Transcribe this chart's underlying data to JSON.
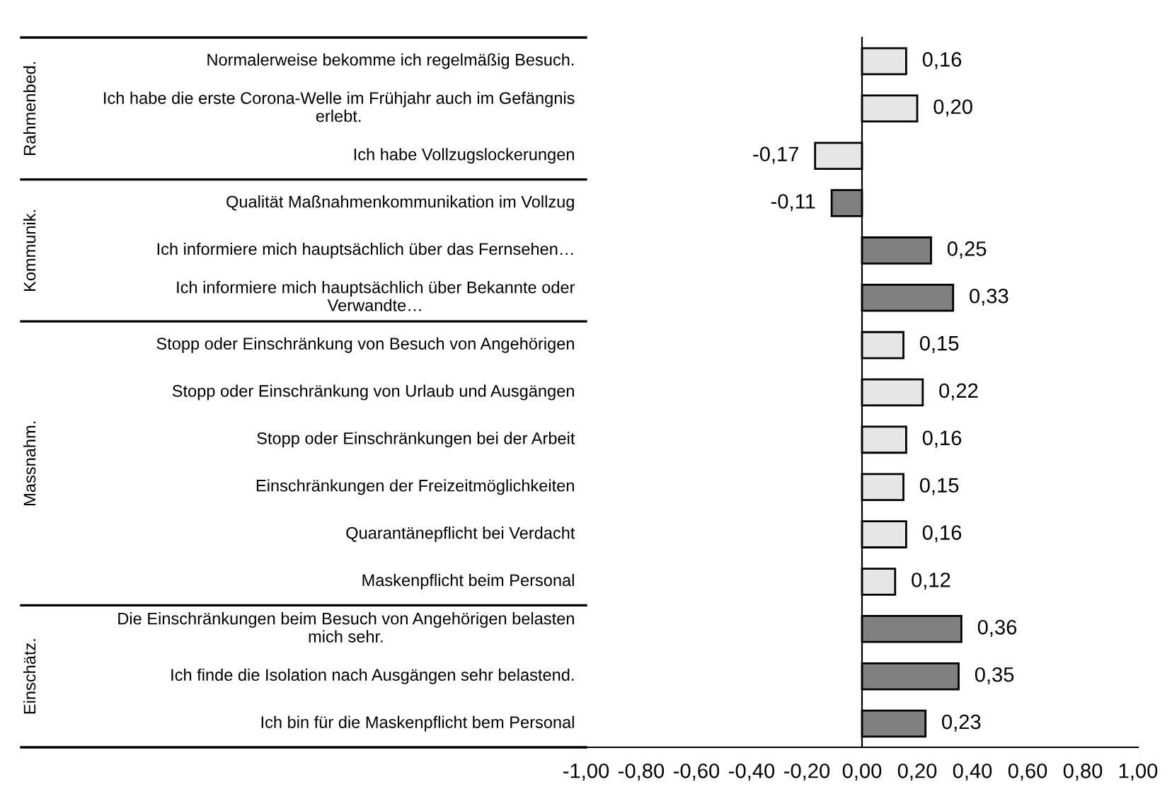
{
  "chart_data": {
    "type": "bar",
    "orientation": "horizontal",
    "categories": [
      "Normalerweise bekomme ich regelmäßig Besuch.",
      "Ich habe die erste Corona-Welle im Frühjahr auch im Gefängnis\nerlebt.",
      "Ich habe Vollzugslockerungen",
      "Qualität Maßnahmenkommunikation im Vollzug",
      "Ich informiere mich hauptsächlich über das Fernsehen…",
      "Ich informiere mich hauptsächlich über Bekannte oder\nVerwandte…",
      "Stopp oder Einschränkung von Besuch von Angehörigen",
      "Stopp oder Einschränkung von Urlaub und Ausgängen",
      "Stopp oder Einschränkungen bei der Arbeit",
      "Einschränkungen der Freizeitmöglichkeiten",
      "Quarantänepflicht bei Verdacht",
      "Maskenpflicht beim Personal",
      "Die Einschränkungen beim Besuch von Angehörigen belasten\nmich sehr.",
      "Ich finde die Isolation nach Ausgängen sehr belastend.",
      "Ich bin für die Maskenpflicht bem Personal"
    ],
    "values": [
      0.16,
      0.2,
      -0.17,
      -0.11,
      0.25,
      0.33,
      0.15,
      0.22,
      0.16,
      0.15,
      0.16,
      0.12,
      0.36,
      0.35,
      0.23
    ],
    "value_labels": [
      "0,16",
      "0,20",
      "-0,17",
      "-0,11",
      "0,25",
      "0,33",
      "0,15",
      "0,22",
      "0,16",
      "0,15",
      "0,16",
      "0,12",
      "0,36",
      "0,35",
      "0,23"
    ],
    "colors": [
      "#e6e6e6",
      "#e6e6e6",
      "#e6e6e6",
      "#808080",
      "#808080",
      "#808080",
      "#e6e6e6",
      "#e6e6e6",
      "#e6e6e6",
      "#e6e6e6",
      "#e6e6e6",
      "#e6e6e6",
      "#808080",
      "#808080",
      "#808080"
    ],
    "xlim": [
      -1.0,
      1.0
    ],
    "xticks": [
      {
        "value": -1.0,
        "label": "-1,00"
      },
      {
        "value": -0.8,
        "label": "-0,80"
      },
      {
        "value": -0.6,
        "label": "-0,60"
      },
      {
        "value": -0.4,
        "label": "-0,40"
      },
      {
        "value": -0.2,
        "label": "-0,20"
      },
      {
        "value": 0.0,
        "label": "0,00"
      },
      {
        "value": 0.2,
        "label": "0,20"
      },
      {
        "value": 0.4,
        "label": "0,40"
      },
      {
        "value": 0.6,
        "label": "0,60"
      },
      {
        "value": 0.8,
        "label": "0,80"
      },
      {
        "value": 1.0,
        "label": "1,00"
      }
    ],
    "annotations": [
      "Rahmenbed.",
      "Kommunik.",
      "Massnahm.",
      "Einschätz."
    ],
    "legend": false
  }
}
